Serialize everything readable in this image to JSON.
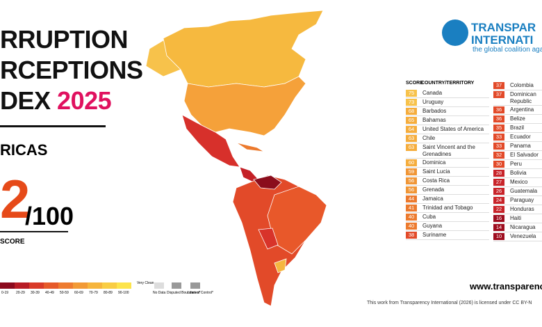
{
  "header": {
    "title_lines": [
      "RRUPTION",
      "RCEPTIONS",
      "DEX"
    ],
    "year": "2025",
    "region": "RICAS",
    "score": "2",
    "score_suffix": "/100",
    "score_label": "SCORE"
  },
  "logo": {
    "line1": "TRANSPAR",
    "line2": "INTERNATI",
    "tagline": "the global coalition agai"
  },
  "table": {
    "headers": [
      "SCORE",
      "COUNTRY/TERRITORY"
    ],
    "left": [
      {
        "score": 75,
        "country": "Canada"
      },
      {
        "score": 73,
        "country": "Uruguay"
      },
      {
        "score": 68,
        "country": "Barbados"
      },
      {
        "score": 65,
        "country": "Bahamas"
      },
      {
        "score": 64,
        "country": "United States of America"
      },
      {
        "score": 63,
        "country": "Chile"
      },
      {
        "score": 63,
        "country": "Saint Vincent and the Grenadines"
      },
      {
        "score": 60,
        "country": "Dominica"
      },
      {
        "score": 59,
        "country": "Saint Lucia"
      },
      {
        "score": 56,
        "country": "Costa Rica"
      },
      {
        "score": 56,
        "country": "Grenada"
      },
      {
        "score": 44,
        "country": "Jamaica"
      },
      {
        "score": 41,
        "country": "Trinidad and Tobago"
      },
      {
        "score": 40,
        "country": "Cuba"
      },
      {
        "score": 40,
        "country": "Guyana"
      },
      {
        "score": 38,
        "country": "Suriname"
      }
    ],
    "right": [
      {
        "score": 37,
        "country": "Colombia"
      },
      {
        "score": 37,
        "country": "Dominican Republic"
      },
      {
        "score": 36,
        "country": "Argentina"
      },
      {
        "score": 36,
        "country": "Belize"
      },
      {
        "score": 35,
        "country": "Brazil"
      },
      {
        "score": 33,
        "country": "Ecuador"
      },
      {
        "score": 33,
        "country": "Panama"
      },
      {
        "score": 32,
        "country": "El Salvador"
      },
      {
        "score": 30,
        "country": "Peru"
      },
      {
        "score": 28,
        "country": "Bolivia"
      },
      {
        "score": 27,
        "country": "Mexico"
      },
      {
        "score": 26,
        "country": "Guatemala"
      },
      {
        "score": 24,
        "country": "Paraguay"
      },
      {
        "score": 22,
        "country": "Honduras"
      },
      {
        "score": 16,
        "country": "Haiti"
      },
      {
        "score": 14,
        "country": "Nicaragua"
      },
      {
        "score": 10,
        "country": "Venezuela"
      }
    ]
  },
  "legend": {
    "ranges": [
      "0-19",
      "20-29",
      "30-39",
      "40-49",
      "50-59",
      "60-69",
      "70-79",
      "80-89",
      "90-100"
    ],
    "very_clean": "Very Clean",
    "no_data": "No Data",
    "disputed": "Disputed Boundaries*",
    "lines": "Lines of Control*"
  },
  "footer": {
    "url": "www.transparenc",
    "license": "This work from Transparency International (2026) is licensed under CC BY-N"
  }
}
